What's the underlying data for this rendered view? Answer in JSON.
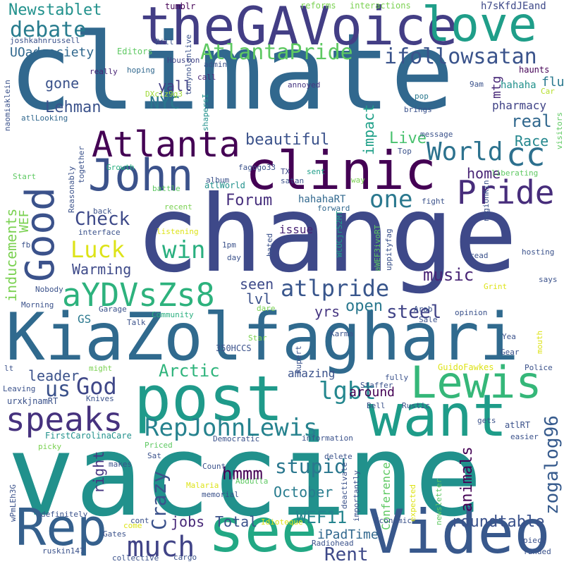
{
  "words": [
    {
      "text": "climate",
      "color": "#31688e"
    },
    {
      "text": "change",
      "color": "#3e4989"
    },
    {
      "text": "vaccine",
      "color": "#21918c"
    },
    {
      "text": "KiaZolfaghari",
      "color": "#306a8e"
    },
    {
      "text": "theGAVoice",
      "color": "#433e85"
    },
    {
      "text": "post",
      "color": "#1f9a8a"
    },
    {
      "text": "want",
      "color": "#1e9c89"
    },
    {
      "text": "clinic",
      "color": "#440154"
    },
    {
      "text": "Video",
      "color": "#38588c"
    },
    {
      "text": "see",
      "color": "#22a884"
    },
    {
      "text": "Rep",
      "color": "#35608d"
    },
    {
      "text": "Lewis",
      "color": "#35b779"
    },
    {
      "text": "love",
      "color": "#1f9e89"
    },
    {
      "text": "John",
      "color": "#3b528b"
    },
    {
      "text": "Atlanta",
      "color": "#440154"
    },
    {
      "text": "Good",
      "color": "#3b528b"
    },
    {
      "text": "speaks",
      "color": "#46327e"
    },
    {
      "text": "aYDVsZs8",
      "color": "#2db27d"
    },
    {
      "text": "Pride",
      "color": "#472d7b"
    },
    {
      "text": "cc",
      "color": "#2d708e"
    },
    {
      "text": "RepJohnLewis",
      "color": "#26828e"
    },
    {
      "text": "much",
      "color": "#414487"
    },
    {
      "text": "World",
      "color": "#2c728e"
    },
    {
      "text": "atlpride",
      "color": "#39568c"
    },
    {
      "text": "AtlantaPride",
      "color": "#5ec962"
    },
    {
      "text": "ifollowsatan",
      "color": "#3a538b"
    },
    {
      "text": "debate",
      "color": "#287c8e"
    },
    {
      "text": "us",
      "color": "#3b528b"
    },
    {
      "text": "God",
      "color": "#3f4788"
    },
    {
      "text": "lgbt",
      "color": "#24878e"
    },
    {
      "text": "one",
      "color": "#2a788e"
    },
    {
      "text": "win",
      "color": "#29af7f"
    },
    {
      "text": "Luck",
      "color": "#dde318"
    },
    {
      "text": "Crazy",
      "color": "#3b528b"
    },
    {
      "text": "stupid",
      "color": "#2a778e"
    },
    {
      "text": "zogalog96",
      "color": "#375b8d"
    },
    {
      "text": "roundtable",
      "color": "#3b528b"
    },
    {
      "text": "WEF11",
      "color": "#25848e"
    },
    {
      "text": "Rent",
      "color": "#3e4989"
    },
    {
      "text": "hmmm",
      "color": "#440154"
    },
    {
      "text": "Check",
      "color": "#3e4a89"
    },
    {
      "text": "Arctic",
      "color": "#2fb47c"
    },
    {
      "text": "Newstablet",
      "color": "#21918c"
    },
    {
      "text": "beautiful",
      "color": "#3b528b"
    },
    {
      "text": "Forum",
      "color": "#472f7d"
    },
    {
      "text": "NYC",
      "color": "#2a788e"
    },
    {
      "text": "Lehman",
      "color": "#3b528b"
    },
    {
      "text": "music",
      "color": "#482475"
    },
    {
      "text": "steel",
      "color": "#414487"
    },
    {
      "text": "real",
      "color": "#31688e"
    },
    {
      "text": "Race",
      "color": "#24878e"
    },
    {
      "text": "Live",
      "color": "#48c16e"
    },
    {
      "text": "home",
      "color": "#482475"
    },
    {
      "text": "open",
      "color": "#2a788e"
    },
    {
      "text": "seen",
      "color": "#3e4a89"
    },
    {
      "text": "lvl",
      "color": "#3b528b"
    },
    {
      "text": "yrs",
      "color": "#453581"
    },
    {
      "text": "October",
      "color": "#287c8e"
    },
    {
      "text": "jobs",
      "color": "#482878"
    },
    {
      "text": "Total",
      "color": "#3b528b"
    },
    {
      "text": "animals",
      "color": "#440154"
    },
    {
      "text": "right",
      "color": "#453581"
    },
    {
      "text": "Warming",
      "color": "#3e4a89"
    },
    {
      "text": "inducements",
      "color": "#7ad151"
    },
    {
      "text": "yall",
      "color": "#433e85"
    },
    {
      "text": "gone",
      "color": "#3b528b"
    },
    {
      "text": "impact",
      "color": "#1fa088"
    },
    {
      "text": "leader",
      "color": "#3b528b"
    },
    {
      "text": "GS",
      "color": "#2a788e"
    },
    {
      "text": "WEF",
      "color": "#7ad151"
    },
    {
      "text": "UOadsociety",
      "color": "#31688e"
    },
    {
      "text": "iPadTime",
      "color": "#31688e"
    },
    {
      "text": "Conference",
      "color": "#5ec962"
    },
    {
      "text": "around",
      "color": "#440154"
    },
    {
      "text": "issue",
      "color": "#482475"
    },
    {
      "text": "amazing",
      "color": "#3b528b"
    },
    {
      "text": "hahahaRT",
      "color": "#31688e"
    },
    {
      "text": "mtg",
      "color": "#482878"
    },
    {
      "text": "pharmacy",
      "color": "#414487"
    },
    {
      "text": "hahaha",
      "color": "#21918c"
    },
    {
      "text": "flu",
      "color": "#2a788e"
    },
    {
      "text": "h7sKfdJEand",
      "color": "#3e4989"
    },
    {
      "text": "tumblr",
      "color": "#440154"
    },
    {
      "text": "reforms",
      "color": "#7ad151"
    },
    {
      "text": "interactions",
      "color": "#7ad151"
    },
    {
      "text": "joshkahnrussell",
      "color": "#3b528b"
    },
    {
      "text": "tonynolanlive",
      "color": "#3b528b"
    },
    {
      "text": "Bill",
      "color": "#3b528b"
    },
    {
      "text": "Editors",
      "color": "#5ec962"
    },
    {
      "text": "Houston",
      "color": "#414487"
    },
    {
      "text": "admin",
      "color": "#3b528b"
    },
    {
      "text": "hoping",
      "color": "#31688e"
    },
    {
      "text": "really",
      "color": "#482475"
    },
    {
      "text": "call",
      "color": "#482475"
    },
    {
      "text": "haunts",
      "color": "#440154"
    },
    {
      "text": "DXclz9g3",
      "color": "#a0da39"
    },
    {
      "text": "annoyed",
      "color": "#453581"
    },
    {
      "text": "9am",
      "color": "#3b528b"
    },
    {
      "text": "pop",
      "color": "#2a788e"
    },
    {
      "text": "brings",
      "color": "#3b528b"
    },
    {
      "text": "Car",
      "color": "#b5de2b"
    },
    {
      "text": "naomiaklein",
      "color": "#3b528b"
    },
    {
      "text": "atlLooking",
      "color": "#31688e"
    },
    {
      "text": "shapersI",
      "color": "#21918c"
    },
    {
      "text": "message",
      "color": "#3b528b"
    },
    {
      "text": "visitors",
      "color": "#5ec962"
    },
    {
      "text": "fagogo33",
      "color": "#3b528b"
    },
    {
      "text": "Top",
      "color": "#3b528b"
    },
    {
      "text": "WCOCjrS2MT",
      "color": "#1f9e89"
    },
    {
      "text": "Growth",
      "color": "#29af7f"
    },
    {
      "text": "atlWorld",
      "color": "#21918c"
    },
    {
      "text": "together",
      "color": "#3b528b"
    },
    {
      "text": "Reasonably",
      "color": "#3b528b"
    },
    {
      "text": "Start",
      "color": "#5ec962"
    },
    {
      "text": "battle",
      "color": "#5ec962"
    },
    {
      "text": "TX",
      "color": "#3e4989"
    },
    {
      "text": "sent",
      "color": "#1f9e89"
    },
    {
      "text": "liberating",
      "color": "#5ec962"
    },
    {
      "text": "album",
      "color": "#3b528b"
    },
    {
      "text": "satan",
      "color": "#3b528b"
    },
    {
      "text": "way",
      "color": "#7ad151"
    },
    {
      "text": "regionKin",
      "color": "#3b528b"
    },
    {
      "text": "recent",
      "color": "#7ad151"
    },
    {
      "text": "fight",
      "color": "#3b528b"
    },
    {
      "text": "back",
      "color": "#3b528b"
    },
    {
      "text": "forward",
      "color": "#31688e"
    },
    {
      "text": "fb",
      "color": "#3b528b"
    },
    {
      "text": "interface",
      "color": "#3b528b"
    },
    {
      "text": "listening",
      "color": "#dde318"
    },
    {
      "text": "uppityfag",
      "color": "#3b528b"
    },
    {
      "text": "aWEF3ivoRT",
      "color": "#5ec962"
    },
    {
      "text": "hosting",
      "color": "#3b528b"
    },
    {
      "text": "1pm",
      "color": "#3b528b"
    },
    {
      "text": "hated",
      "color": "#3b528b"
    },
    {
      "text": "day",
      "color": "#3b528b"
    },
    {
      "text": "read",
      "color": "#3b528b"
    },
    {
      "text": "Nobody",
      "color": "#3b528b"
    },
    {
      "text": "says",
      "color": "#3b528b"
    },
    {
      "text": "Morning",
      "color": "#3b528b"
    },
    {
      "text": "Garage",
      "color": "#3b528b"
    },
    {
      "text": "Community",
      "color": "#29af7f"
    },
    {
      "text": "dare",
      "color": "#7ad151"
    },
    {
      "text": "Arab",
      "color": "#3b528b"
    },
    {
      "text": "opinion",
      "color": "#3b528b"
    },
    {
      "text": "Grint",
      "color": "#dde318"
    },
    {
      "text": "Talk",
      "color": "#3b528b"
    },
    {
      "text": "Karma",
      "color": "#3b528b"
    },
    {
      "text": "Sale",
      "color": "#3b528b"
    },
    {
      "text": "Yea",
      "color": "#3b528b"
    },
    {
      "text": "Star",
      "color": "#7ad151"
    },
    {
      "text": "mouth",
      "color": "#dde318"
    },
    {
      "text": "Gear",
      "color": "#3b528b"
    },
    {
      "text": "350HCCS",
      "color": "#3b528b"
    },
    {
      "text": "Rupert",
      "color": "#3b528b"
    },
    {
      "text": "GuidoFawkes",
      "color": "#dde318"
    },
    {
      "text": "lt",
      "color": "#3b528b"
    },
    {
      "text": "might",
      "color": "#7ad151"
    },
    {
      "text": "fully",
      "color": "#3b528b"
    },
    {
      "text": "Police",
      "color": "#3b528b"
    },
    {
      "text": "Leaving",
      "color": "#3b528b"
    },
    {
      "text": "Staffer",
      "color": "#3b528b"
    },
    {
      "text": "urxkjnamRT",
      "color": "#3b528b"
    },
    {
      "text": "Knives",
      "color": "#3b528b"
    },
    {
      "text": "Bell",
      "color": "#3b528b"
    },
    {
      "text": "Rustic",
      "color": "#3b528b"
    },
    {
      "text": "FirstCarolinaCare",
      "color": "#21918c"
    },
    {
      "text": "gets",
      "color": "#3b528b"
    },
    {
      "text": "atlRT",
      "color": "#3b528b"
    },
    {
      "text": "picky",
      "color": "#7ad151"
    },
    {
      "text": "Priced",
      "color": "#5ec962"
    },
    {
      "text": "Democratic",
      "color": "#3b528b"
    },
    {
      "text": "information",
      "color": "#3b528b"
    },
    {
      "text": "easier",
      "color": "#3b528b"
    },
    {
      "text": "Sat",
      "color": "#3b528b"
    },
    {
      "text": "makes",
      "color": "#3b528b"
    },
    {
      "text": "Count",
      "color": "#3b528b"
    },
    {
      "text": "delete",
      "color": "#3b528b"
    },
    {
      "text": "deactivate",
      "color": "#3b528b"
    },
    {
      "text": "importantly",
      "color": "#3b528b"
    },
    {
      "text": "newsletter",
      "color": "#5ec962"
    },
    {
      "text": "expected",
      "color": "#dde318"
    },
    {
      "text": "Abdulla",
      "color": "#5ec962"
    },
    {
      "text": "Malaria",
      "color": "#dde318"
    },
    {
      "text": "memorial",
      "color": "#3b528b"
    },
    {
      "text": "wPmLEh3G",
      "color": "#3b528b"
    },
    {
      "text": "definitely",
      "color": "#3b528b"
    },
    {
      "text": "cont",
      "color": "#3b528b"
    },
    {
      "text": "come",
      "color": "#dde318"
    },
    {
      "text": "Idioteque",
      "color": "#dde318"
    },
    {
      "text": "Economic",
      "color": "#3b528b"
    },
    {
      "text": "Gates",
      "color": "#3b528b"
    },
    {
      "text": "Radiohead",
      "color": "#3b528b"
    },
    {
      "text": "piece",
      "color": "#3b528b"
    },
    {
      "text": "funded",
      "color": "#3b528b"
    },
    {
      "text": "ruskin147",
      "color": "#3b528b"
    },
    {
      "text": "collective",
      "color": "#3b528b"
    },
    {
      "text": "cargo",
      "color": "#3b528b"
    }
  ]
}
